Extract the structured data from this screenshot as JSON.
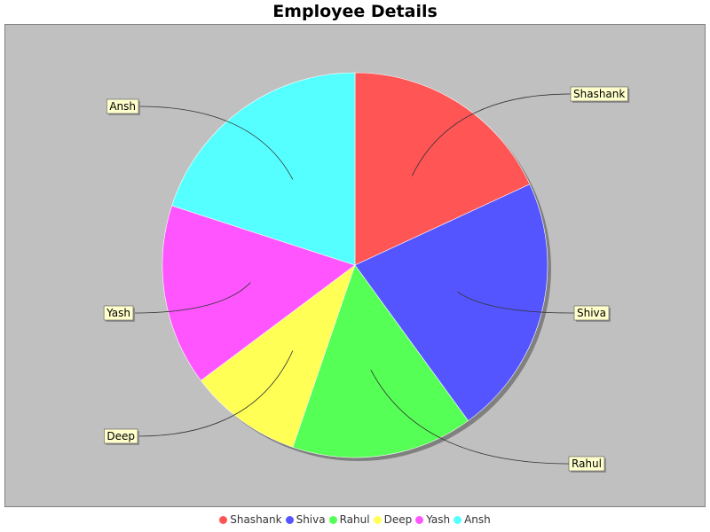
{
  "chart_data": {
    "type": "pie",
    "title": "Employee Details",
    "slices": [
      {
        "label": "Shashank",
        "value": 19,
        "color": "#ff5555"
      },
      {
        "label": "Shiva",
        "value": 23,
        "color": "#5555ff"
      },
      {
        "label": "Rahul",
        "value": 16,
        "color": "#55ff55"
      },
      {
        "label": "Deep",
        "value": 10,
        "color": "#ffff55"
      },
      {
        "label": "Yash",
        "value": 16,
        "color": "#ff55ff"
      },
      {
        "label": "Ansh",
        "value": 21,
        "color": "#55ffff"
      }
    ],
    "legend_position": "bottom",
    "plot_background": "#c0c0c0",
    "label_background": "#ffffcc"
  }
}
